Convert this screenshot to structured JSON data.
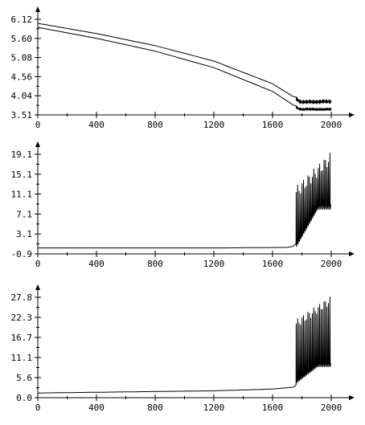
{
  "chart_data": [
    {
      "type": "line",
      "title": "",
      "xlabel": "",
      "ylabel": "",
      "xlim": [
        0,
        2000
      ],
      "ylim": [
        3.51,
        6.12
      ],
      "x_ticks": [
        "0",
        "400",
        "800",
        "1200",
        "1600",
        "2000"
      ],
      "y_ticks": [
        "6.12",
        "5.60",
        "5.08",
        "4.56",
        "4.04",
        "3.51"
      ],
      "grid": false,
      "series": [
        {
          "x": [
            0,
            400,
            800,
            1200,
            1600,
            1760,
            1780,
            1800,
            1850,
            1900,
            1950,
            2000
          ],
          "y": [
            6.01,
            5.73,
            5.4,
            4.98,
            4.36,
            3.96,
            3.88,
            3.86,
            3.87,
            3.86,
            3.88,
            3.87
          ]
        },
        {
          "x": [
            0,
            400,
            800,
            1200,
            1600,
            1760,
            1780,
            1800,
            1850,
            1900,
            1950,
            2000
          ],
          "y": [
            5.9,
            5.6,
            5.25,
            4.8,
            4.15,
            3.73,
            3.67,
            3.66,
            3.67,
            3.66,
            3.66,
            3.67
          ]
        }
      ],
      "oscillation": {
        "start": 1760,
        "end": 2000,
        "amplitude": [
          0.06,
          0.04
        ]
      }
    },
    {
      "type": "line",
      "title": "",
      "xlabel": "",
      "ylabel": "",
      "xlim": [
        0,
        2000
      ],
      "ylim": [
        -0.9,
        19.1
      ],
      "x_ticks": [
        "0",
        "400",
        "800",
        "1200",
        "1600",
        "2000"
      ],
      "y_ticks": [
        "19.1",
        "15.1",
        "11.1",
        "7.1",
        "3.1",
        "-0.9"
      ],
      "grid": false,
      "series": [
        {
          "x": [
            0,
            1300,
            1700,
            1740,
            1760
          ],
          "y": [
            0.3,
            0.3,
            0.4,
            0.6,
            1.2
          ]
        }
      ],
      "spikes": {
        "start": 1760,
        "end": 2000,
        "period": 10,
        "baseline_low": 0.5,
        "peak_start": 11.5,
        "peak_end": 18.2
      }
    },
    {
      "type": "line",
      "title": "",
      "xlabel": "",
      "ylabel": "",
      "xlim": [
        0,
        2000
      ],
      "ylim": [
        0.0,
        27.8
      ],
      "x_ticks": [
        "0",
        "400",
        "800",
        "1200",
        "1600",
        "2000"
      ],
      "y_ticks": [
        "27.8",
        "22.3",
        "16.7",
        "11.1",
        "5.6",
        "0.0"
      ],
      "grid": false,
      "series": [
        {
          "x": [
            0,
            400,
            800,
            1200,
            1600,
            1740,
            1760
          ],
          "y": [
            1.3,
            1.5,
            1.7,
            1.9,
            2.4,
            2.9,
            3.5
          ]
        }
      ],
      "spikes": {
        "start": 1760,
        "end": 2000,
        "period": 10,
        "baseline_low": 4.0,
        "peak_start": 20.5,
        "peak_end": 26.8
      }
    }
  ]
}
